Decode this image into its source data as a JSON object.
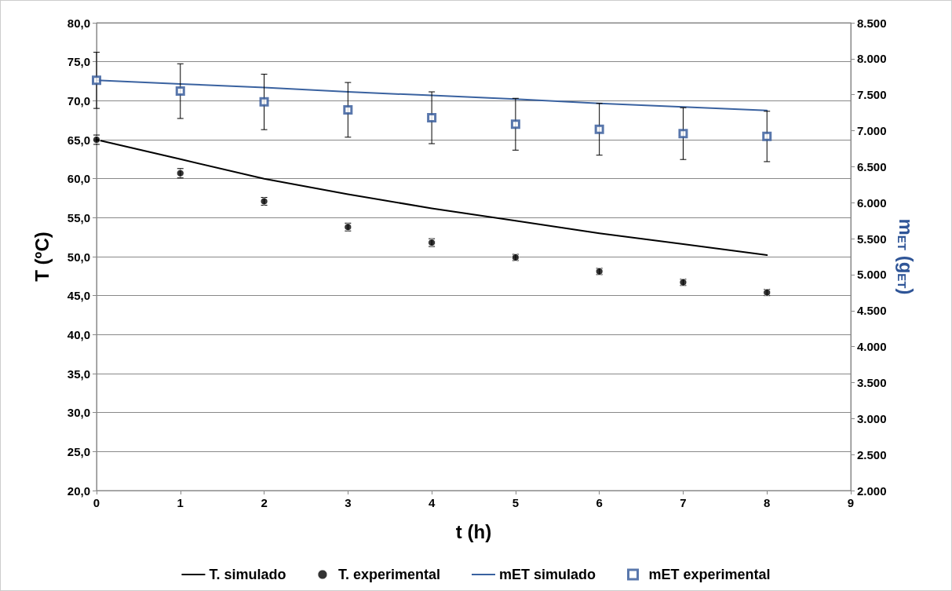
{
  "chart_data": {
    "type": "line",
    "xlabel": "t (h)",
    "ylabel": "T (ºC)",
    "y2label": "m$_{ET}$ (g$_{ET}$)",
    "x": [
      0,
      1,
      2,
      3,
      4,
      5,
      6,
      7,
      8
    ],
    "xlim": [
      0,
      9
    ],
    "xticks": [
      0,
      1,
      2,
      3,
      4,
      5,
      6,
      7,
      8,
      9
    ],
    "ylim": [
      20,
      80
    ],
    "yticks": [
      {
        "value": 20,
        "label": "20,0"
      },
      {
        "value": 25,
        "label": "25,0"
      },
      {
        "value": 30,
        "label": "30,0"
      },
      {
        "value": 35,
        "label": "35,0"
      },
      {
        "value": 40,
        "label": "40,0"
      },
      {
        "value": 45,
        "label": "45,0"
      },
      {
        "value": 50,
        "label": "50,0"
      },
      {
        "value": 55,
        "label": "55,0"
      },
      {
        "value": 60,
        "label": "60,0"
      },
      {
        "value": 65,
        "label": "65,0"
      },
      {
        "value": 70,
        "label": "70,0"
      },
      {
        "value": 75,
        "label": "75,0"
      },
      {
        "value": 80,
        "label": "80,0"
      }
    ],
    "y2lim": [
      2000,
      8500
    ],
    "y2ticks": [
      {
        "value": 2000,
        "label": "2.000"
      },
      {
        "value": 2500,
        "label": "2.500"
      },
      {
        "value": 3000,
        "label": "3.000"
      },
      {
        "value": 3500,
        "label": "3.500"
      },
      {
        "value": 4000,
        "label": "4.000"
      },
      {
        "value": 4500,
        "label": "4.500"
      },
      {
        "value": 5000,
        "label": "5.000"
      },
      {
        "value": 5500,
        "label": "5.500"
      },
      {
        "value": 6000,
        "label": "6.000"
      },
      {
        "value": 6500,
        "label": "6.500"
      },
      {
        "value": 7000,
        "label": "7.000"
      },
      {
        "value": 7500,
        "label": "7.500"
      },
      {
        "value": 8000,
        "label": "8.000"
      },
      {
        "value": 8500,
        "label": "8.500"
      }
    ],
    "grid": "y",
    "legend": "bottom",
    "line_style": "solid",
    "series": [
      {
        "name": "T. simulado",
        "type": "line",
        "color": "#000000",
        "marker": "none",
        "values": [
          65.0,
          62.5,
          60.0,
          58.0,
          56.2,
          54.6,
          53.0,
          51.6,
          50.2
        ]
      },
      {
        "name": "T. experimental",
        "type": "scatter",
        "color": "#000000",
        "marker": "circle",
        "values": [
          65.0,
          60.7,
          57.1,
          53.8,
          51.8,
          49.9,
          48.1,
          46.7,
          45.4
        ],
        "errors": [
          0.6,
          0.6,
          0.5,
          0.5,
          0.5,
          0.4,
          0.4,
          0.4,
          0.4
        ]
      },
      {
        "name": "mET simulado",
        "type": "line",
        "axis": "y2",
        "color": "#3a62a0",
        "marker": "none",
        "values": [
          7700,
          7650,
          7600,
          7540,
          7490,
          7440,
          7380,
          7330,
          7280
        ]
      },
      {
        "name": "mET experimental",
        "type": "scatter",
        "axis": "y2",
        "color": "#2f5597",
        "marker": "square",
        "values": [
          7700,
          7550,
          7400,
          7290,
          7180,
          7090,
          7020,
          6960,
          6920
        ],
        "errors": [
          390,
          380,
          385,
          380,
          360,
          360,
          360,
          360,
          350
        ]
      }
    ]
  }
}
